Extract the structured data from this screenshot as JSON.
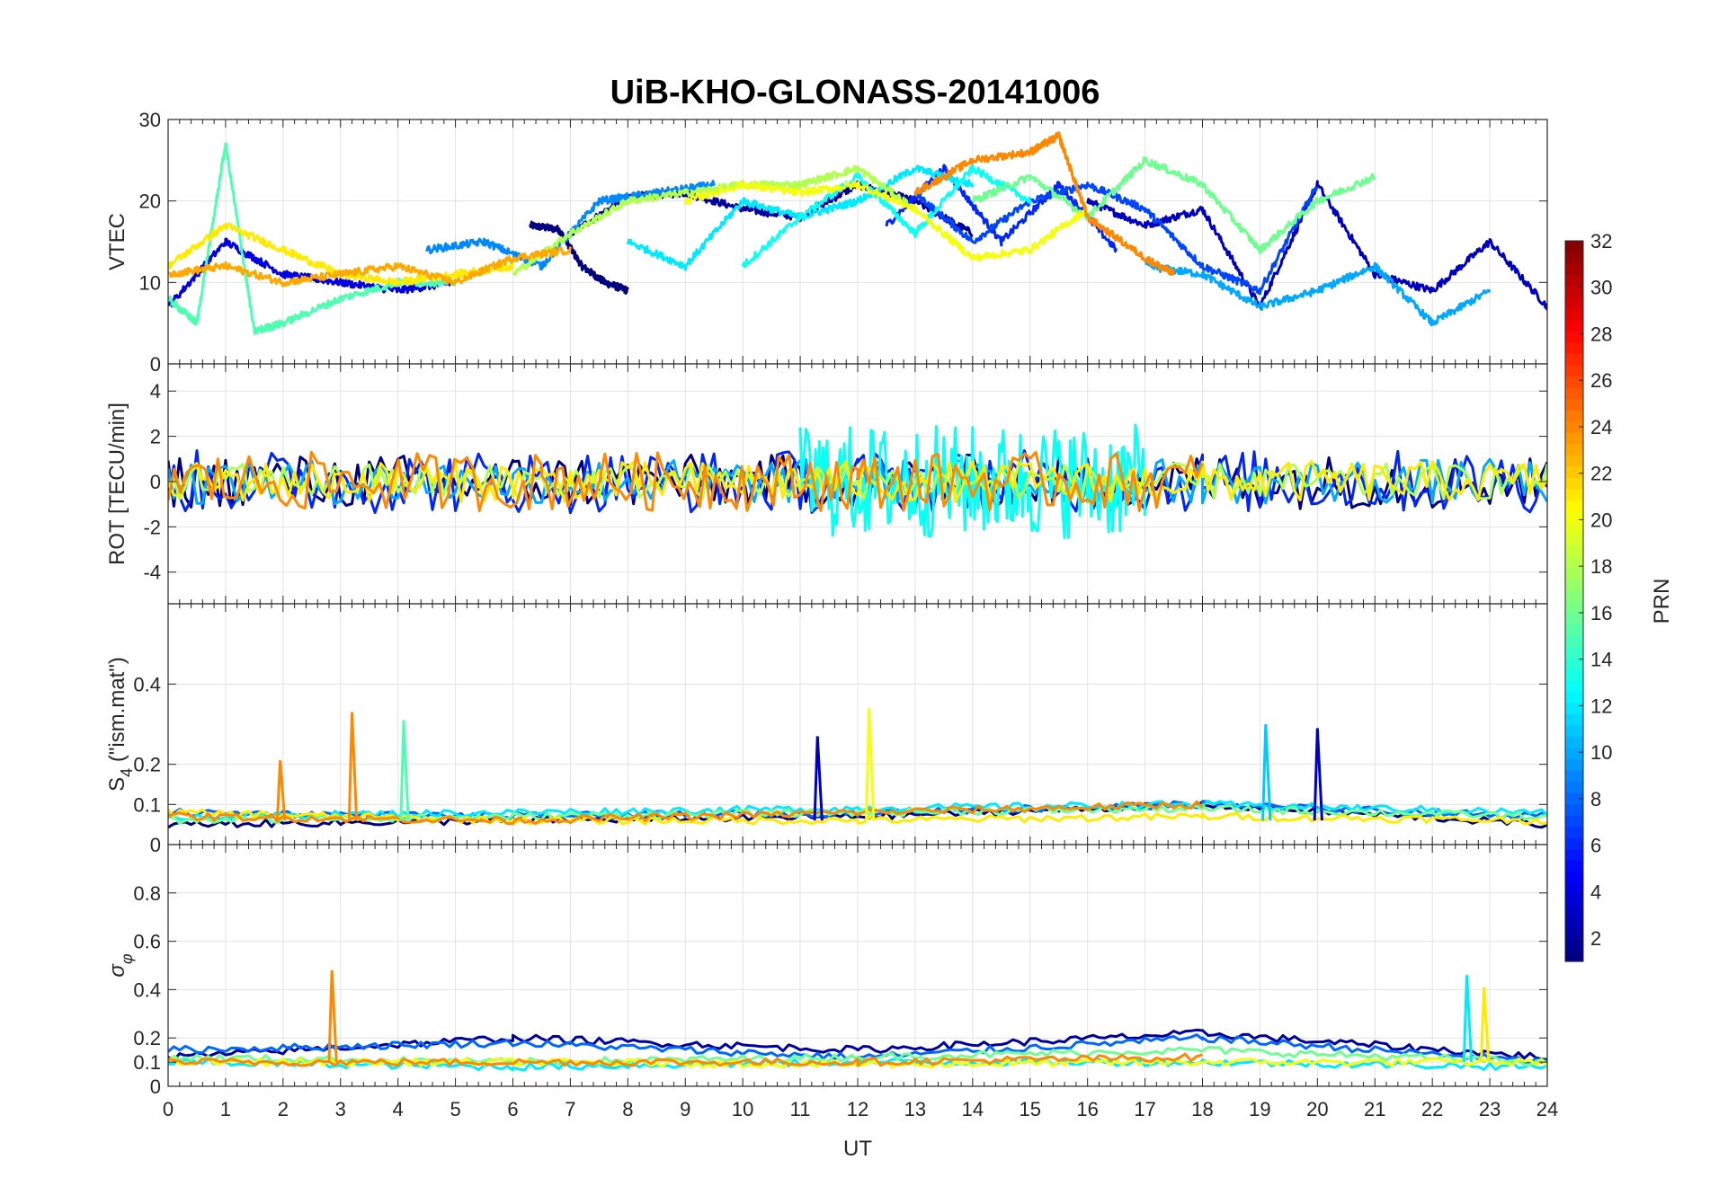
{
  "chart_data": {
    "type": "line",
    "title": "UiB-KHO-GLONASS-20141006",
    "xlabel": "UT",
    "xlim": [
      0,
      24
    ],
    "xticks": [
      0,
      1,
      2,
      3,
      4,
      5,
      6,
      7,
      8,
      9,
      10,
      11,
      12,
      13,
      14,
      15,
      16,
      17,
      18,
      19,
      20,
      21,
      22,
      23,
      24
    ],
    "colorbar": {
      "label": "PRN",
      "range": [
        1,
        32
      ],
      "ticks": [
        2,
        4,
        6,
        8,
        10,
        12,
        14,
        16,
        18,
        20,
        22,
        24,
        26,
        28,
        30,
        32
      ],
      "colormap": "jet"
    },
    "grid": true,
    "panels": [
      {
        "ylabel": "VTEC",
        "ylim": [
          0,
          30
        ],
        "yticks": [
          0,
          10,
          20,
          30
        ],
        "series": [
          {
            "prn": 1,
            "x": [
              6.3,
              6.8,
              7.2,
              7.6,
              8.0
            ],
            "y": [
              17,
              16.5,
              12,
              10,
              9
            ]
          },
          {
            "prn": 2,
            "x": [
              7.0,
              8.0,
              9.0,
              10.0,
              11.0,
              12.0,
              13.0,
              14.0
            ],
            "y": [
              16,
              20.5,
              21,
              19,
              18,
              22,
              20,
              16
            ]
          },
          {
            "prn": 3,
            "x": [
              16.0,
              17.0,
              18.0,
              19.0,
              20.0,
              21.0,
              22.0,
              23.0,
              24.0
            ],
            "y": [
              20,
              17,
              19,
              7,
              22,
              11,
              9,
              15,
              7
            ]
          },
          {
            "prn": 4,
            "x": [
              0,
              1,
              2,
              3,
              4,
              5
            ],
            "y": [
              7,
              15,
              11,
              10,
              9,
              10
            ]
          },
          {
            "prn": 6,
            "x": [
              12.5,
              13.5,
              14.5,
              15.5,
              16.5
            ],
            "y": [
              17,
              24,
              15,
              22,
              14
            ]
          },
          {
            "prn": 7,
            "x": [
              13.0,
              14.0,
              15.0,
              16.0,
              17.0,
              18.0,
              19.0,
              20.0
            ],
            "y": [
              21,
              15,
              20,
              22,
              19,
              12,
              9,
              22
            ]
          },
          {
            "prn": 9,
            "x": [
              4.5,
              5.5,
              6.5,
              7.5,
              8.5,
              9.5
            ],
            "y": [
              14,
              15,
              12,
              20,
              21,
              22
            ]
          },
          {
            "prn": 10,
            "x": [
              17.0,
              18.0,
              19.0,
              20.0,
              21.0,
              22.0,
              23.0
            ],
            "y": [
              12,
              11,
              7,
              9,
              12,
              5,
              9
            ]
          },
          {
            "prn": 12,
            "x": [
              8.0,
              9.0,
              10.0,
              11.0,
              12.0,
              13.0,
              14.0
            ],
            "y": [
              15,
              12,
              20,
              18,
              20,
              24,
              22
            ]
          },
          {
            "prn": 13,
            "x": [
              10.0,
              11.0,
              12.0,
              13.0,
              14.0,
              15.0
            ],
            "y": [
              12,
              18,
              23,
              16,
              24,
              20
            ]
          },
          {
            "prn": 15,
            "x": [
              0,
              0.5,
              1.0,
              1.5,
              2.0,
              3.0,
              4.0,
              5.0
            ],
            "y": [
              8,
              5,
              27,
              4,
              5,
              8,
              10,
              10
            ]
          },
          {
            "prn": 16,
            "x": [
              14.0,
              15.0,
              16.0,
              17.0,
              18.0,
              19.0,
              20.0,
              21.0
            ],
            "y": [
              20,
              23,
              18,
              25,
              22,
              14,
              20,
              23
            ]
          },
          {
            "prn": 18,
            "x": [
              6.0,
              7.0,
              8.0,
              9.0,
              10.0,
              11.0,
              12.0,
              13.0
            ],
            "y": [
              11,
              16,
              20,
              21,
              22,
              22,
              24,
              19
            ]
          },
          {
            "prn": 20,
            "x": [
              9.0,
              10.0,
              11.0,
              12.0,
              13.0,
              14.0,
              15.0,
              16.0
            ],
            "y": [
              20,
              22,
              21,
              22,
              19,
              13,
              14,
              19
            ]
          },
          {
            "prn": 21,
            "x": [
              0,
              1,
              2,
              3,
              4,
              5,
              6
            ],
            "y": [
              12,
              17,
              14,
              11,
              10,
              11,
              12
            ]
          },
          {
            "prn": 23,
            "x": [
              0,
              1,
              2,
              3,
              4,
              5,
              6,
              7
            ],
            "y": [
              11,
              12,
              10,
              11,
              12,
              10,
              13,
              14
            ]
          },
          {
            "prn": 24,
            "x": [
              13.0,
              14.0,
              15.0,
              15.5,
              16.0,
              17.0,
              17.5
            ],
            "y": [
              21,
              25,
              26,
              28,
              18,
              13,
              11
            ]
          }
        ]
      },
      {
        "ylabel": "ROT [TECU/min]",
        "ylim": [
          -5.4,
          5.2
        ],
        "yticks": [
          -4,
          -2,
          0,
          2,
          4
        ],
        "series": [
          {
            "prn": 1,
            "x": [
              0,
              6,
              12,
              18,
              24
            ],
            "y": [
              0,
              0,
              0,
              0,
              0
            ],
            "amplitude": 1.2
          },
          {
            "prn": 6,
            "x": [
              0,
              6,
              12,
              18,
              24
            ],
            "y": [
              0,
              0,
              0,
              0,
              0
            ],
            "amplitude": 1.4
          },
          {
            "prn": 10,
            "x": [
              0,
              6,
              12,
              18,
              24
            ],
            "y": [
              0,
              0,
              0,
              0,
              0
            ],
            "amplitude": 1.0
          },
          {
            "prn": 13,
            "x": [
              11,
              13,
              15,
              17
            ],
            "y": [
              0,
              0,
              0,
              0
            ],
            "amplitude": 2.5
          },
          {
            "prn": 18,
            "x": [
              0,
              6,
              12,
              18,
              24
            ],
            "y": [
              0,
              0,
              0,
              0,
              0
            ],
            "amplitude": 0.8
          },
          {
            "prn": 21,
            "x": [
              0,
              6,
              12,
              18,
              24
            ],
            "y": [
              0,
              0,
              0,
              0,
              0
            ],
            "amplitude": 0.9
          },
          {
            "prn": 24,
            "x": [
              0,
              6.5,
              12,
              18
            ],
            "y": [
              0,
              0,
              0,
              0
            ],
            "amplitude": 1.3
          }
        ]
      },
      {
        "ylabel": "S4 (\"ism.mat\")",
        "ylabel_main": "S",
        "ylabel_sub": "4",
        "ylabel_rest": " (\"ism.mat\")",
        "ylim": [
          0,
          0.6
        ],
        "yticks": [
          0,
          0.1,
          0.2,
          0.4
        ],
        "series": [
          {
            "prn": 1,
            "x": [
              0,
              6,
              12,
              18,
              24
            ],
            "y": [
              0.05,
              0.06,
              0.07,
              0.1,
              0.05
            ]
          },
          {
            "prn": 8,
            "x": [
              0,
              6,
              12,
              18,
              24
            ],
            "y": [
              0.08,
              0.07,
              0.08,
              0.1,
              0.07
            ]
          },
          {
            "prn": 12,
            "x": [
              0,
              6,
              12,
              18,
              24
            ],
            "y": [
              0.07,
              0.08,
              0.09,
              0.1,
              0.08
            ]
          },
          {
            "prn": 16,
            "x": [
              0,
              6,
              12,
              18,
              24
            ],
            "y": [
              0.06,
              0.07,
              0.08,
              0.09,
              0.07
            ]
          },
          {
            "prn": 21,
            "x": [
              0,
              6,
              12,
              18,
              24
            ],
            "y": [
              0.08,
              0.06,
              0.06,
              0.07,
              0.06
            ]
          },
          {
            "prn": 24,
            "x": [
              0,
              6,
              12,
              18
            ],
            "y": [
              0.07,
              0.06,
              0.08,
              0.1
            ]
          }
        ],
        "spikes": [
          {
            "prn": 24,
            "x": 1.95,
            "y": 0.21
          },
          {
            "prn": 24,
            "x": 3.2,
            "y": 0.33
          },
          {
            "prn": 15,
            "x": 4.1,
            "y": 0.31
          },
          {
            "prn": 3,
            "x": 11.3,
            "y": 0.27
          },
          {
            "prn": 20,
            "x": 12.2,
            "y": 0.34
          },
          {
            "prn": 11,
            "x": 19.1,
            "y": 0.3
          },
          {
            "prn": 3,
            "x": 20.0,
            "y": 0.29
          }
        ]
      },
      {
        "ylabel": "σφ",
        "ylabel_main": "σ",
        "ylabel_sub": "φ",
        "ylim": [
          0,
          1.0
        ],
        "yticks": [
          0,
          0.1,
          0.2,
          0.4,
          0.6,
          0.8
        ],
        "series": [
          {
            "prn": 2,
            "x": [
              0,
              6,
              12,
              18,
              24
            ],
            "y": [
              0.12,
              0.2,
              0.15,
              0.22,
              0.12
            ]
          },
          {
            "prn": 8,
            "x": [
              0,
              6,
              12,
              18,
              24
            ],
            "y": [
              0.15,
              0.18,
              0.12,
              0.2,
              0.1
            ]
          },
          {
            "prn": 12,
            "x": [
              0,
              6,
              12,
              18,
              24
            ],
            "y": [
              0.1,
              0.08,
              0.1,
              0.1,
              0.08
            ]
          },
          {
            "prn": 16,
            "x": [
              0,
              6,
              12,
              18,
              24
            ],
            "y": [
              0.12,
              0.1,
              0.12,
              0.15,
              0.1
            ]
          },
          {
            "prn": 20,
            "x": [
              0,
              6,
              12,
              18,
              24
            ],
            "y": [
              0.1,
              0.1,
              0.09,
              0.1,
              0.1
            ]
          },
          {
            "prn": 24,
            "x": [
              0,
              6,
              12,
              18
            ],
            "y": [
              0.1,
              0.1,
              0.1,
              0.12
            ]
          }
        ],
        "spikes": [
          {
            "prn": 24,
            "x": 2.85,
            "y": 0.48
          },
          {
            "prn": 12,
            "x": 22.6,
            "y": 0.46
          },
          {
            "prn": 21,
            "x": 22.9,
            "y": 0.41
          }
        ]
      }
    ]
  }
}
